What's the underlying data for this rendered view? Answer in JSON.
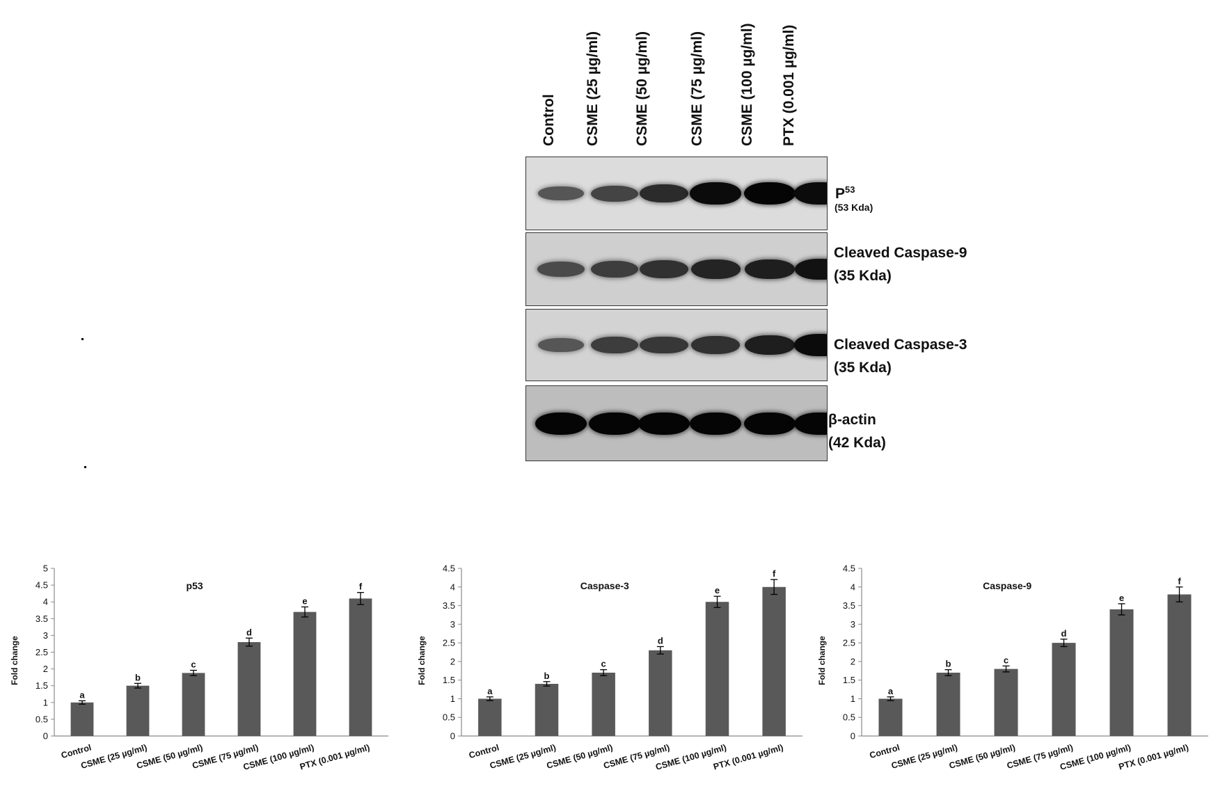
{
  "lanes": [
    "Control",
    "CSME (25 µg/ml)",
    "CSME (50 µg/ml)",
    "CSME (75 µg/ml)",
    "CSME (100 µg/ml)",
    "PTX (0.001 µg/ml)"
  ],
  "blots": [
    {
      "key": "p53",
      "label": "P",
      "label_sup": "53",
      "sublabel": "(53 Kda)",
      "band_intensity": [
        0.35,
        0.5,
        0.7,
        0.95,
        1.0,
        0.95
      ]
    },
    {
      "key": "casp9",
      "label": "Cleaved Caspase-9",
      "sublabel": "(35 Kda)",
      "band_intensity": [
        0.45,
        0.55,
        0.65,
        0.75,
        0.8,
        0.9
      ]
    },
    {
      "key": "casp3",
      "label": "Cleaved Caspase-3",
      "sublabel": "(35 Kda)",
      "band_intensity": [
        0.35,
        0.55,
        0.6,
        0.65,
        0.8,
        0.95
      ]
    },
    {
      "key": "actin",
      "label": "β-actin",
      "sublabel": "(42 Kda)",
      "band_intensity": [
        1.0,
        1.0,
        1.0,
        1.0,
        1.0,
        1.0
      ]
    }
  ],
  "chart_data": [
    {
      "type": "bar",
      "title": "p53",
      "ylabel": "Fold change",
      "xlabel": "",
      "categories": [
        "Control",
        "CSME (25 µg/ml)",
        "CSME (50 µg/ml)",
        "CSME (75 µg/ml)",
        "CSME (100 µg/ml)",
        "PTX (0.001 µg/ml)"
      ],
      "values": [
        1.0,
        1.5,
        1.88,
        2.8,
        3.7,
        4.1
      ],
      "errors": [
        0.05,
        0.07,
        0.08,
        0.12,
        0.15,
        0.18
      ],
      "significance_letters": [
        "a",
        "b",
        "c",
        "d",
        "e",
        "f"
      ],
      "ylim": [
        0,
        5
      ],
      "yticks": [
        "0",
        "0.5",
        "1",
        "1.5",
        "2",
        "2.5",
        "3",
        "3.5",
        "4",
        "4.5",
        "5"
      ],
      "bar_color": "#595959"
    },
    {
      "type": "bar",
      "title": "Caspase-3",
      "ylabel": "Fold change",
      "xlabel": "",
      "categories": [
        "Control",
        "CSME (25 µg/ml)",
        "CSME (50 µg/ml)",
        "CSME (75 µg/ml)",
        "CSME (100 µg/ml)",
        "PTX (0.001 µg/ml)"
      ],
      "values": [
        1.0,
        1.4,
        1.7,
        2.3,
        3.6,
        4.0
      ],
      "errors": [
        0.05,
        0.06,
        0.08,
        0.1,
        0.15,
        0.2
      ],
      "significance_letters": [
        "a",
        "b",
        "c",
        "d",
        "e",
        "f"
      ],
      "ylim": [
        0,
        4.5
      ],
      "yticks": [
        "0",
        "0.5",
        "1",
        "1.5",
        "2",
        "2.5",
        "3",
        "3.5",
        "4",
        "4.5"
      ],
      "bar_color": "#595959"
    },
    {
      "type": "bar",
      "title": "Caspase-9",
      "ylabel": "Fold change",
      "xlabel": "",
      "categories": [
        "Control",
        "CSME (25 µg/ml)",
        "CSME (50 µg/ml)",
        "CSME (75 µg/ml)",
        "CSME (100 µg/ml)",
        "PTX (0.001 µg/ml)"
      ],
      "values": [
        1.0,
        1.7,
        1.8,
        2.5,
        3.4,
        3.8
      ],
      "errors": [
        0.05,
        0.08,
        0.08,
        0.1,
        0.15,
        0.2
      ],
      "significance_letters": [
        "a",
        "b",
        "c",
        "d",
        "e",
        "f"
      ],
      "ylim": [
        0,
        4.5
      ],
      "yticks": [
        "0",
        "0.5",
        "1",
        "1.5",
        "2",
        "2.5",
        "3",
        "3.5",
        "4",
        "4.5"
      ],
      "bar_color": "#595959"
    }
  ]
}
